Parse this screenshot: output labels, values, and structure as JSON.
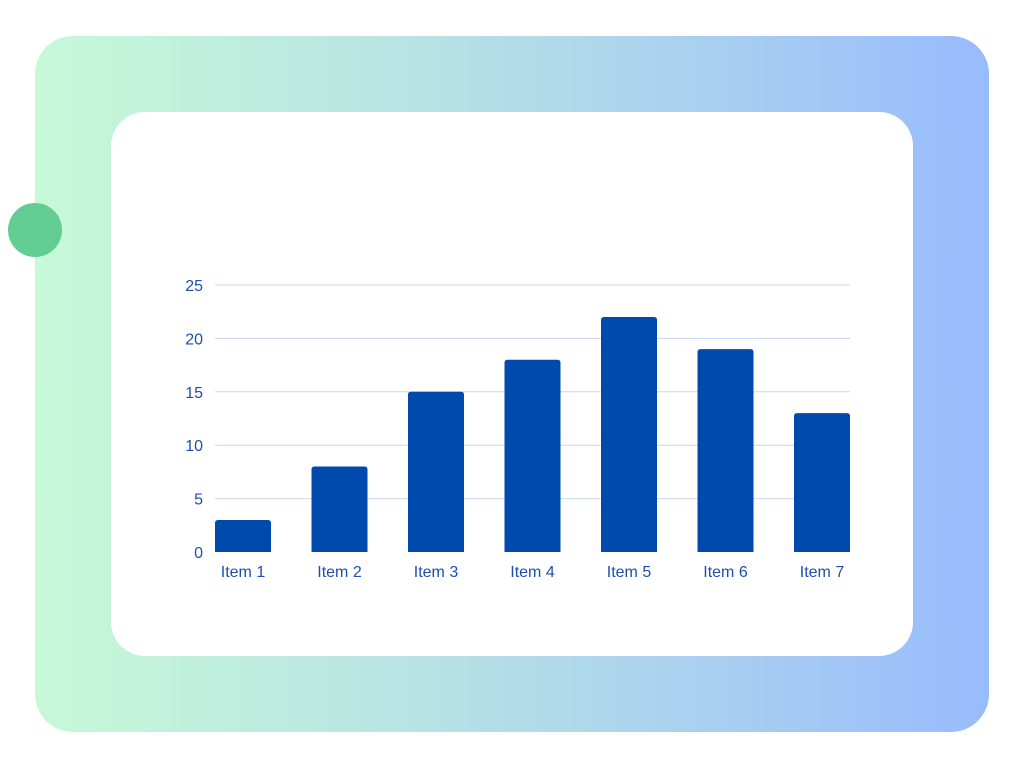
{
  "colors": {
    "bar": "#004aad",
    "tick_text": "#1d4fae",
    "grid": "#c7d7ec",
    "frame_gradient_start": "#c6f9d8",
    "frame_gradient_end": "#98bbfc",
    "dot": "#63cc93",
    "card": "#ffffff"
  },
  "chart_data": {
    "type": "bar",
    "categories": [
      "Item 1",
      "Item 2",
      "Item 3",
      "Item 4",
      "Item 5",
      "Item 6",
      "Item 7"
    ],
    "values": [
      3,
      8,
      15,
      18,
      22,
      19,
      13
    ],
    "ylim": [
      0,
      25
    ],
    "yticks": [
      "0",
      "5",
      "10",
      "15",
      "20",
      "25"
    ],
    "grid": true,
    "legend": "none"
  }
}
